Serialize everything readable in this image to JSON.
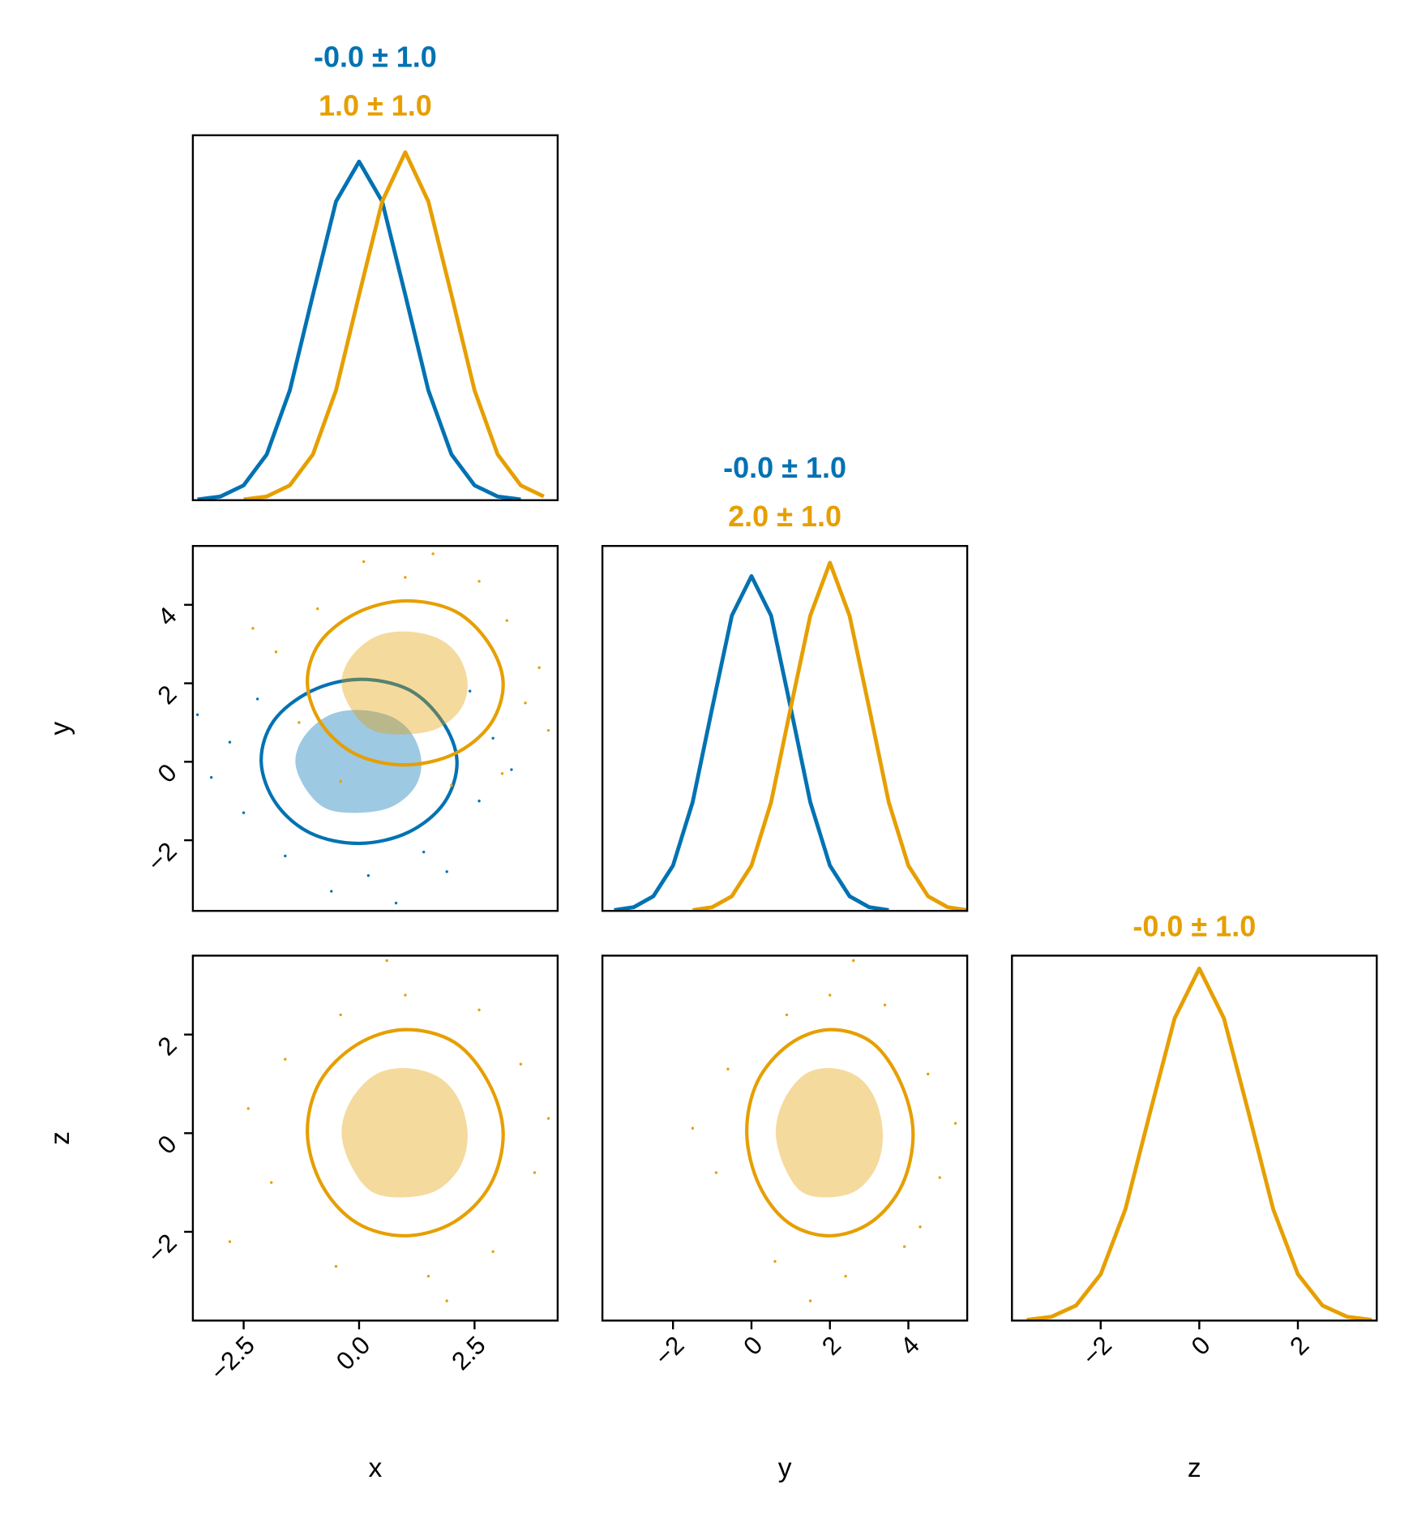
{
  "chart_data": [
    {
      "type": "line",
      "xlim": [
        -3.6,
        4.3
      ],
      "ylim": [
        0,
        0.43
      ],
      "series": [
        {
          "title": "-0.0 ± 1.0",
          "color": "#0072b2",
          "x": [
            -3.5,
            -3,
            -2.5,
            -2,
            -1.5,
            -1,
            -0.5,
            0,
            0.5,
            1,
            1.5,
            2,
            2.5,
            3,
            3.5
          ],
          "values": [
            0.0009,
            0.0044,
            0.0175,
            0.054,
            0.1295,
            0.242,
            0.352,
            0.399,
            0.352,
            0.242,
            0.1295,
            0.054,
            0.0175,
            0.0044,
            0.0009
          ]
        },
        {
          "title": "1.0 ± 1.0",
          "color": "#e69f00",
          "x": [
            -2.5,
            -2,
            -1.5,
            -1,
            -0.5,
            0,
            0.5,
            1,
            1.5,
            2,
            2.5,
            3,
            3.5,
            4
          ],
          "values": [
            0.0009,
            0.0044,
            0.0175,
            0.054,
            0.1295,
            0.242,
            0.352,
            0.41,
            0.352,
            0.242,
            0.1295,
            0.054,
            0.0175,
            0.0044
          ]
        }
      ]
    },
    {
      "type": "scatter",
      "xlim": [
        -3.6,
        4.3
      ],
      "ylim": [
        -3.8,
        5.5
      ],
      "ylabel": "y",
      "yticks": [
        {
          "value": -2,
          "label": "−2"
        },
        0,
        2,
        4
      ],
      "series": [
        {
          "color": "#0072b2",
          "x": [
            -2.8,
            -2.5,
            -1.6,
            0.2,
            1.4,
            2.6,
            2.9,
            -3.2,
            -0.6,
            1.9,
            -2.2,
            2.4,
            0.8,
            -3.5,
            3.3
          ],
          "y": [
            0.5,
            -1.3,
            -2.4,
            -2.9,
            -2.3,
            -1.0,
            0.6,
            -0.4,
            -3.3,
            -2.8,
            1.6,
            1.8,
            -3.6,
            1.2,
            -0.2
          ],
          "contours": [
            {
              "filled": true,
              "x": [
                1.35,
                1.15,
                0.7,
                0,
                -0.66,
                -1.18,
                -1.38,
                -1.15,
                -0.7,
                0,
                0.7,
                1.2
              ],
              "y": [
                0,
                0.7,
                1.15,
                1.32,
                1.18,
                0.66,
                0,
                -0.7,
                -1.2,
                -1.3,
                -1.15,
                -0.66
              ]
            },
            {
              "filled": false,
              "x": [
                2.12,
                1.8,
                1.07,
                0,
                -1.04,
                -1.85,
                -2.12,
                -1.8,
                -1.05,
                0,
                1.06,
                1.84
              ],
              "y": [
                0,
                1.03,
                1.84,
                2.1,
                1.8,
                1.04,
                0,
                -1.06,
                -1.82,
                -2.08,
                -1.8,
                -1.05
              ]
            }
          ]
        },
        {
          "color": "#e69f00",
          "x": [
            1,
            -0.9,
            3.2,
            3.6,
            -1.8,
            2.6,
            3.9,
            -1.3,
            2.0,
            0.1,
            4.1,
            -2.3,
            3.1,
            1.6,
            -0.4
          ],
          "y": [
            4.7,
            3.9,
            3.6,
            1.5,
            2.8,
            4.6,
            2.4,
            1.0,
            -0.6,
            5.1,
            0.8,
            3.4,
            -0.3,
            5.3,
            -0.5
          ],
          "contours": [
            {
              "filled": true,
              "x": [
                2.35,
                2.15,
                1.7,
                1,
                0.34,
                -0.18,
                -0.38,
                -0.15,
                0.3,
                1,
                1.7,
                2.2
              ],
              "y": [
                2,
                2.7,
                3.15,
                3.32,
                3.18,
                2.66,
                2,
                1.3,
                0.8,
                0.7,
                0.85,
                1.34
              ]
            },
            {
              "filled": false,
              "x": [
                3.12,
                2.8,
                2.07,
                1,
                -0.04,
                -0.85,
                -1.12,
                -0.8,
                -0.05,
                1,
                2.06,
                2.84
              ],
              "y": [
                2,
                3.03,
                3.84,
                4.1,
                3.8,
                3.04,
                2,
                0.94,
                0.18,
                -0.08,
                0.2,
                0.95
              ]
            }
          ]
        }
      ]
    },
    {
      "type": "line",
      "xlim": [
        -3.8,
        5.5
      ],
      "ylim": [
        0,
        0.435
      ],
      "series": [
        {
          "title": "-0.0 ± 1.0",
          "color": "#0072b2",
          "x": [
            -3.5,
            -3,
            -2.5,
            -2,
            -1.5,
            -1,
            -0.5,
            0,
            0.5,
            1,
            1.5,
            2,
            2.5,
            3,
            3.5
          ],
          "values": [
            0.0009,
            0.0044,
            0.0175,
            0.054,
            0.1295,
            0.242,
            0.352,
            0.399,
            0.352,
            0.242,
            0.1295,
            0.054,
            0.0175,
            0.0044,
            0.0009
          ]
        },
        {
          "title": "2.0 ± 1.0",
          "color": "#e69f00",
          "x": [
            -1.5,
            -1,
            -0.5,
            0,
            0.5,
            1,
            1.5,
            2,
            2.5,
            3,
            3.5,
            4,
            4.5,
            5,
            5.5
          ],
          "values": [
            0.0009,
            0.0044,
            0.0175,
            0.054,
            0.1295,
            0.242,
            0.352,
            0.415,
            0.352,
            0.242,
            0.1295,
            0.054,
            0.0175,
            0.0044,
            0.0009
          ]
        }
      ]
    },
    {
      "type": "scatter",
      "xlim": [
        -3.6,
        4.3
      ],
      "ylim": [
        -3.8,
        3.6
      ],
      "xlabel": "x",
      "ylabel": "z",
      "xticks": [
        {
          "value": -2.5,
          "label": "−2.5"
        },
        {
          "value": 0,
          "label": "0.0"
        },
        2.5
      ],
      "yticks": [
        {
          "value": -2,
          "label": "−2"
        },
        0,
        2
      ],
      "series": [
        {
          "color": "#e69f00",
          "x": [
            1,
            -1.6,
            3.5,
            3.8,
            -1.9,
            1.5,
            -0.5,
            2.9,
            -0.4,
            2.6,
            4.1,
            -2.8,
            0.6,
            1.9,
            -2.4
          ],
          "y": [
            2.8,
            1.5,
            1.4,
            -0.8,
            -1,
            -2.9,
            -2.7,
            -2.4,
            2.4,
            2.5,
            0.3,
            -2.2,
            3.5,
            -3.4,
            0.5
          ],
          "contours": [
            {
              "filled": true,
              "x": [
                2.35,
                2.15,
                1.7,
                1,
                0.34,
                -0.18,
                -0.38,
                -0.15,
                0.3,
                1,
                1.7,
                2.2
              ],
              "y": [
                0,
                0.7,
                1.15,
                1.32,
                1.18,
                0.66,
                0,
                -0.7,
                -1.2,
                -1.3,
                -1.15,
                -0.66
              ]
            },
            {
              "filled": false,
              "x": [
                3.12,
                2.8,
                2.07,
                1,
                -0.04,
                -0.85,
                -1.12,
                -0.8,
                -0.05,
                1,
                2.06,
                2.84
              ],
              "y": [
                0,
                1.03,
                1.84,
                2.1,
                1.8,
                1.04,
                0,
                -1.06,
                -1.82,
                -2.08,
                -1.8,
                -1.05
              ]
            }
          ]
        }
      ]
    },
    {
      "type": "scatter",
      "xlim": [
        -3.8,
        5.5
      ],
      "ylim": [
        -3.8,
        3.6
      ],
      "xlabel": "y",
      "xticks": [
        {
          "value": -2,
          "label": "−2"
        },
        0,
        2,
        4
      ],
      "series": [
        {
          "color": "#e69f00",
          "x": [
            2,
            -0.6,
            4.5,
            4.8,
            -0.9,
            2.4,
            0.6,
            3.9,
            0.9,
            3.4,
            5.2,
            -1.5,
            2.6,
            1.5,
            4.3
          ],
          "y": [
            2.8,
            1.3,
            1.2,
            -0.9,
            -0.8,
            -2.9,
            -2.6,
            -2.3,
            2.4,
            2.6,
            0.2,
            0.1,
            3.5,
            -3.4,
            -1.9
          ],
          "contours": [
            {
              "filled": true,
              "x": [
                3.35,
                3.15,
                2.7,
                2,
                1.34,
                0.82,
                0.62,
                0.85,
                1.3,
                2,
                2.7,
                3.2
              ],
              "y": [
                0,
                0.7,
                1.15,
                1.32,
                1.18,
                0.66,
                0,
                -0.7,
                -1.2,
                -1.3,
                -1.15,
                -0.66
              ]
            },
            {
              "filled": false,
              "x": [
                4.12,
                3.8,
                3.07,
                2,
                0.96,
                0.15,
                -0.12,
                0.2,
                0.95,
                2,
                3.06,
                3.84
              ],
              "y": [
                0,
                1.03,
                1.84,
                2.1,
                1.8,
                1.04,
                0,
                -1.06,
                -1.82,
                -2.08,
                -1.8,
                -1.05
              ]
            }
          ]
        }
      ]
    },
    {
      "type": "line",
      "xlim": [
        -3.8,
        3.6
      ],
      "ylim": [
        0,
        0.425
      ],
      "xlabel": "z",
      "xticks": [
        {
          "value": -2,
          "label": "−2"
        },
        0,
        2
      ],
      "series": [
        {
          "title": "-0.0 ± 1.0",
          "color": "#e69f00",
          "x": [
            -3.5,
            -3,
            -2.5,
            -2,
            -1.5,
            -1,
            -0.5,
            0,
            0.5,
            1,
            1.5,
            2,
            2.5,
            3,
            3.5
          ],
          "values": [
            0.0009,
            0.0044,
            0.0175,
            0.054,
            0.1295,
            0.242,
            0.352,
            0.41,
            0.352,
            0.242,
            0.1295,
            0.054,
            0.0175,
            0.0044,
            0.0009
          ]
        }
      ]
    }
  ]
}
